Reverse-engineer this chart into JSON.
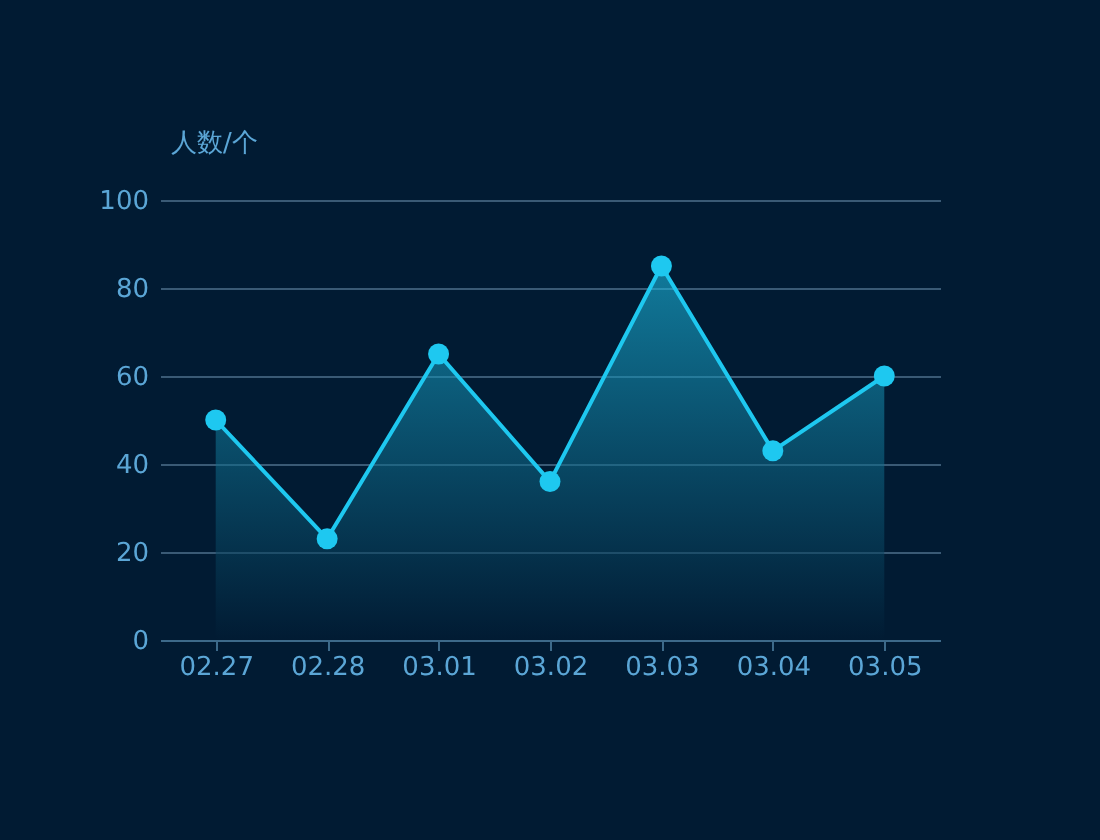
{
  "chart_data": {
    "type": "area",
    "ylabel": "人数/个",
    "categories": [
      "02.27",
      "02.28",
      "03.01",
      "03.02",
      "03.03",
      "03.04",
      "03.05"
    ],
    "series": [
      {
        "color": "#1ec8f0",
        "values": [
          50,
          23,
          65,
          36,
          85,
          43,
          60
        ]
      }
    ],
    "ylim": [
      0,
      100
    ],
    "yticks": [
      0,
      20,
      40,
      60,
      80,
      100
    ],
    "grid": "y",
    "marker": "circle"
  }
}
